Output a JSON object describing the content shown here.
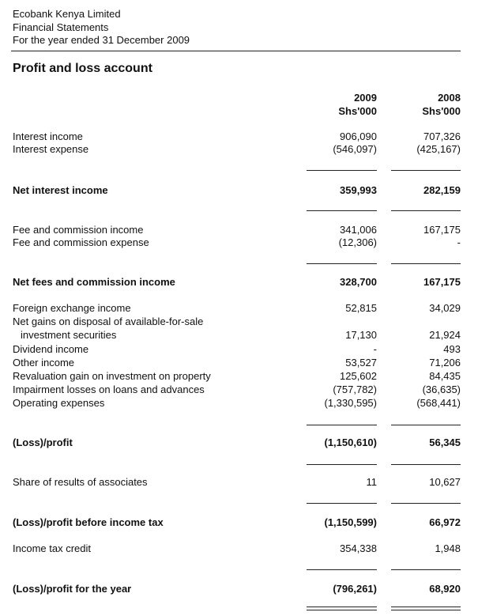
{
  "header": {
    "company": "Ecobank Kenya Limited",
    "document": "Financial Statements",
    "period": "For the year ended 31 December 2009"
  },
  "title": "Profit and loss account",
  "columns": [
    {
      "year": "2009",
      "unit": "Shs'000"
    },
    {
      "year": "2008",
      "unit": "Shs'000"
    }
  ],
  "rows": [
    {
      "label": "Interest income",
      "v2009": "906,090",
      "v2008": "707,326",
      "bold": false
    },
    {
      "label": "Interest expense",
      "v2009": "(546,097)",
      "v2008": "(425,167)",
      "bold": false
    },
    {
      "label": "Net interest income",
      "v2009": "359,993",
      "v2008": "282,159",
      "bold": true
    },
    {
      "label": "Fee and commission income",
      "v2009": "341,006",
      "v2008": "167,175",
      "bold": false
    },
    {
      "label": "Fee and commission expense",
      "v2009": "(12,306)",
      "v2008": "-",
      "bold": false
    },
    {
      "label": "Net fees and commission income",
      "v2009": "328,700",
      "v2008": "167,175",
      "bold": true
    },
    {
      "label": "Foreign exchange income",
      "v2009": "52,815",
      "v2008": "34,029",
      "bold": false
    },
    {
      "label": "Net gains on disposal of available-for-sale",
      "v2009": "",
      "v2008": "",
      "bold": false
    },
    {
      "label": "  investment securities",
      "v2009": "17,130",
      "v2008": "21,924",
      "bold": false
    },
    {
      "label": "Dividend income",
      "v2009": "-",
      "v2008": "493",
      "bold": false
    },
    {
      "label": "Other income",
      "v2009": "53,527",
      "v2008": "71,206",
      "bold": false
    },
    {
      "label": "Revaluation gain on investment on property",
      "v2009": "125,602",
      "v2008": "84,435",
      "bold": false
    },
    {
      "label": "Impairment losses on loans and advances",
      "v2009": "(757,782)",
      "v2008": "(36,635)",
      "bold": false
    },
    {
      "label": "Operating expenses",
      "v2009": "(1,330,595)",
      "v2008": "(568,441)",
      "bold": false
    },
    {
      "label": "(Loss)/profit",
      "v2009": "(1,150,610)",
      "v2008": "56,345",
      "bold": true
    },
    {
      "label": "Share of results of associates",
      "v2009": "11",
      "v2008": "10,627",
      "bold": false
    },
    {
      "label": "(Loss)/profit before income tax",
      "v2009": "(1,150,599)",
      "v2008": "66,972",
      "bold": true
    },
    {
      "label": "Income tax credit",
      "v2009": "354,338",
      "v2008": "1,948",
      "bold": false
    },
    {
      "label": "(Loss)/profit for the year",
      "v2009": "(796,261)",
      "v2008": "68,920",
      "bold": true
    }
  ]
}
